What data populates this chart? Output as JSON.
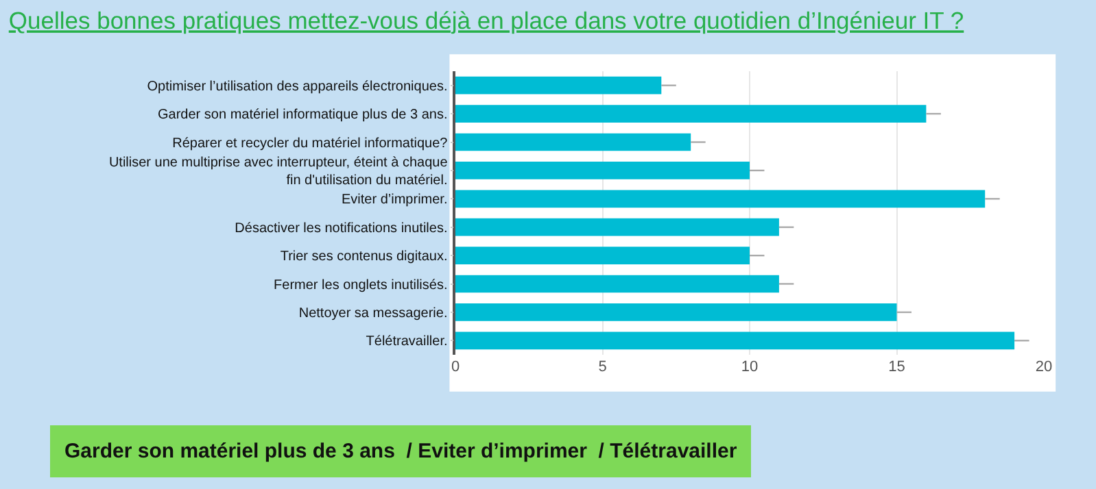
{
  "chart_data": {
    "type": "bar",
    "orientation": "horizontal",
    "title": "Quelles bonnes pratiques mettez-vous déjà en place dans votre quotidien d’Ingénieur IT ?",
    "categories": [
      "Optimiser l’utilisation des appareils électroniques.",
      "Garder son matériel informatique plus de 3 ans.",
      "Réparer et recycler du matériel informatique?",
      "Utiliser une multiprise avec interrupteur, éteint à chaque fin d'utilisation du matériel.",
      "Eviter d’imprimer.",
      "Désactiver les notifications inutiles.",
      "Trier ses contenus digitaux.",
      "Fermer les onglets inutilisés.",
      "Nettoyer sa messagerie.",
      "Télétravailler."
    ],
    "values": [
      7,
      16,
      8,
      10,
      18,
      11,
      10,
      11,
      15,
      19
    ],
    "errors": [
      [
        7,
        7.5
      ],
      [
        16,
        16.5
      ],
      [
        8,
        8.5
      ],
      [
        10,
        10.5
      ],
      [
        18,
        18.5
      ],
      [
        11,
        11.5
      ],
      [
        10,
        10.5
      ],
      [
        11,
        11.5
      ],
      [
        15,
        15.5
      ],
      [
        19,
        19.5
      ]
    ],
    "color": "#00bcd4",
    "xlim": [
      0,
      20
    ],
    "xticks": [
      0,
      5,
      10,
      15,
      20
    ],
    "grid": "x",
    "annotations": [
      "Garder son matériel plus de 3 ans  / Eviter d’imprimer  / Télétravailler"
    ]
  }
}
